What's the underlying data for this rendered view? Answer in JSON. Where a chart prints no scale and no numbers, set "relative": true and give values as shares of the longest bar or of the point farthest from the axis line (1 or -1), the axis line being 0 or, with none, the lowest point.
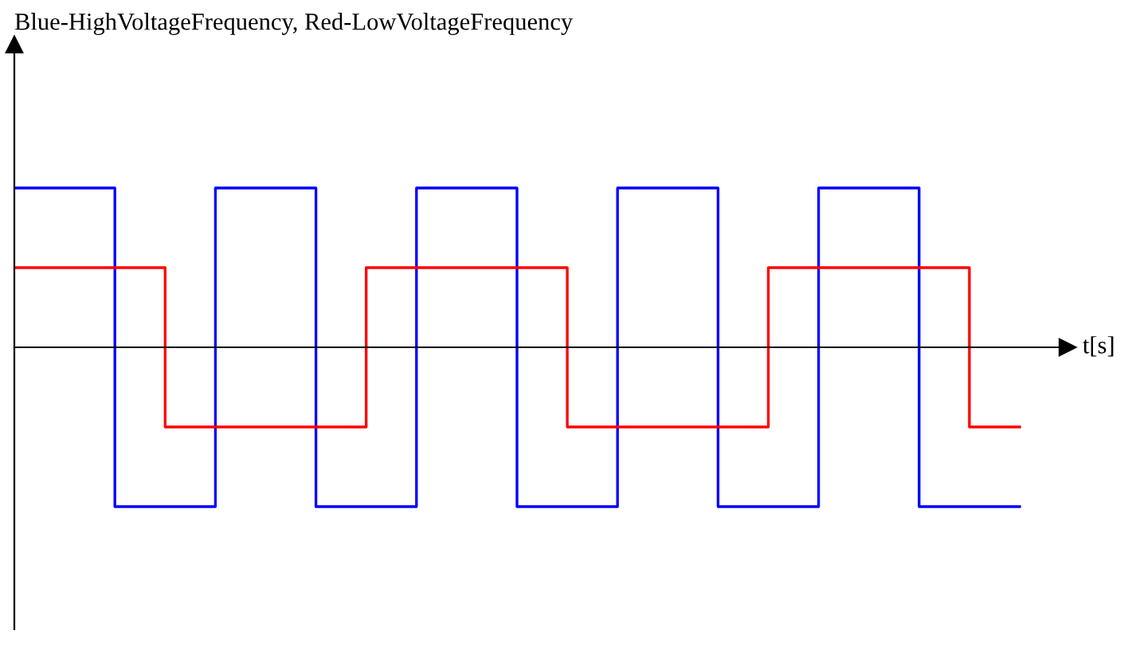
{
  "chart_data": {
    "type": "step",
    "title": "Blue-HighVoltageFrequency, Red-LowVoltageFrequency",
    "xlabel": "t[s]",
    "relative": true,
    "legend": false,
    "categories": [
      null,
      null,
      null,
      null,
      null,
      null,
      null,
      null,
      null,
      null,
      null,
      null,
      null,
      null,
      null,
      null,
      null,
      null,
      null,
      null,
      null
    ],
    "series": [
      {
        "color": "#0000ff",
        "values": [
          1,
          1,
          -1,
          -1,
          1,
          1,
          -1,
          -1,
          1,
          1,
          -1,
          -1,
          1,
          1,
          -1,
          -1,
          1,
          1,
          -1,
          -1,
          -1
        ]
      },
      {
        "color": "#ff0000",
        "values": [
          0.5,
          0.5,
          0.5,
          -0.5,
          -0.5,
          -0.5,
          -0.5,
          0.5,
          0.5,
          0.5,
          0.5,
          -0.5,
          -0.5,
          -0.5,
          -0.5,
          0.5,
          0.5,
          0.5,
          0.5,
          -0.5,
          -0.5
        ]
      }
    ]
  }
}
